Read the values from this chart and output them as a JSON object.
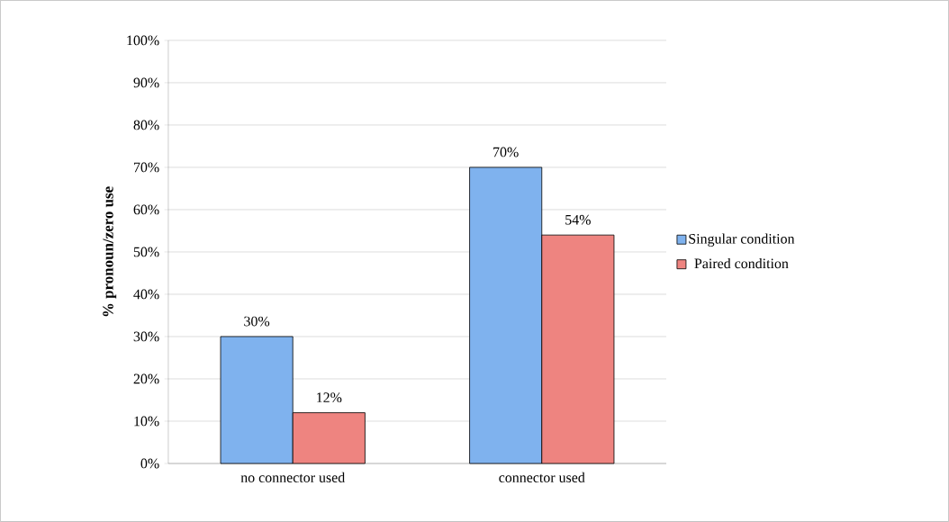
{
  "chart_data": {
    "type": "bar",
    "ylabel": "% pronoun/zero use",
    "categories": [
      "no connector used",
      "connector used"
    ],
    "series": [
      {
        "name": "Singular condition",
        "color": "#7fb2ee",
        "values": [
          30,
          70
        ],
        "value_labels": [
          "30%",
          "70%"
        ]
      },
      {
        "name": "Paired condition",
        "color": "#ee8480",
        "values": [
          12,
          54
        ],
        "value_labels": [
          "12%",
          "54%"
        ]
      }
    ],
    "ylim": [
      0,
      100
    ],
    "yticks": [
      {
        "value": 0,
        "label": "0%"
      },
      {
        "value": 10,
        "label": "10%"
      },
      {
        "value": 20,
        "label": "20%"
      },
      {
        "value": 30,
        "label": "30%"
      },
      {
        "value": 40,
        "label": "40%"
      },
      {
        "value": 50,
        "label": "50%"
      },
      {
        "value": 60,
        "label": "60%"
      },
      {
        "value": 70,
        "label": "70%"
      },
      {
        "value": 80,
        "label": "80%"
      },
      {
        "value": 90,
        "label": "90%"
      },
      {
        "value": 100,
        "label": "100%"
      }
    ],
    "grid": "y",
    "legend": "right"
  }
}
